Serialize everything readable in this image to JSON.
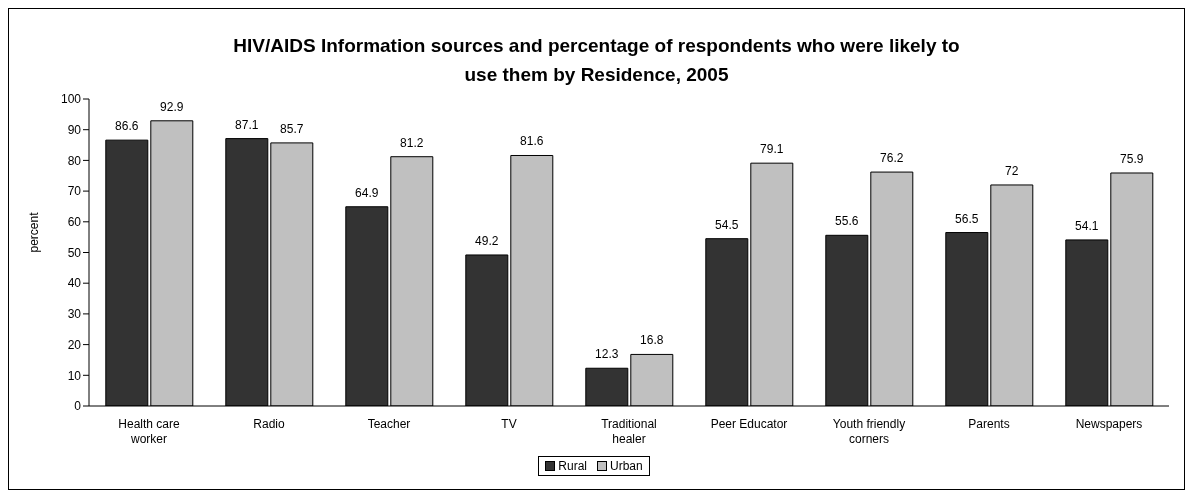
{
  "chart_data": {
    "type": "bar",
    "title": "HIV/AIDS Information sources and percentage of respondents who were likely to use them by Residence, 2005",
    "ylabel": "percent",
    "categories": [
      "Health care worker",
      "Radio",
      "Teacher",
      "TV",
      "Traditional healer",
      "Peer Educator",
      "Youth friendly corners",
      "Parents",
      "Newspapers"
    ],
    "series": [
      {
        "name": "Rural",
        "color": "#333333",
        "values": [
          86.6,
          87.1,
          64.9,
          49.2,
          12.3,
          54.5,
          55.6,
          56.5,
          54.1
        ]
      },
      {
        "name": "Urban",
        "color": "#c0c0c0",
        "values": [
          92.9,
          85.7,
          81.2,
          81.6,
          16.8,
          79.1,
          76.2,
          72,
          75.9
        ]
      }
    ],
    "ylim": [
      0,
      100
    ],
    "yticks": [
      0,
      10,
      20,
      30,
      40,
      50,
      60,
      70,
      80,
      90,
      100
    ],
    "grid": false,
    "legend": "bottom",
    "data_labels": true
  }
}
